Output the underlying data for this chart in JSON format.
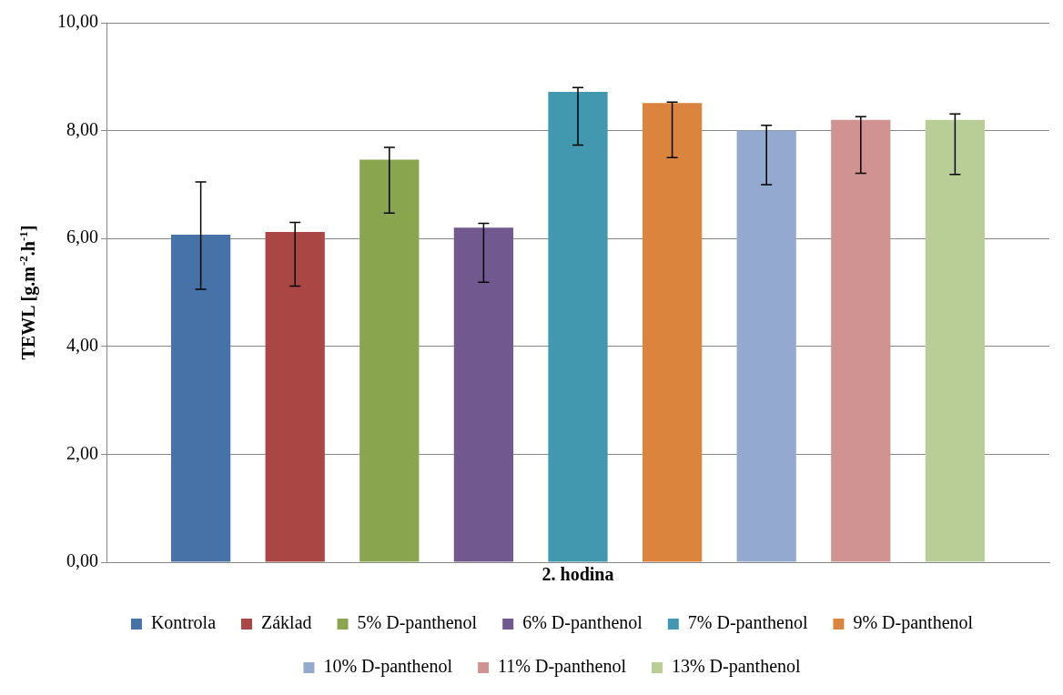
{
  "chart_data": {
    "type": "bar",
    "ylabel": "TEWL [g.m$^{-2}$.h$^{-1}$]",
    "categories": [
      "2. hodina"
    ],
    "series": [
      {
        "name": "Kontrola",
        "color": "#4672a8",
        "values": [
          6.07
        ],
        "errors": [
          [
            5.06,
            7.05
          ]
        ]
      },
      {
        "name": "Základ",
        "color": "#aa4644",
        "values": [
          6.12
        ],
        "errors": [
          [
            5.12,
            6.3
          ]
        ]
      },
      {
        "name": "5% D-panthenol",
        "color": "#89a54e",
        "values": [
          7.46
        ],
        "errors": [
          [
            6.47,
            7.69
          ]
        ]
      },
      {
        "name": "6% D-panthenol",
        "color": "#71588f",
        "values": [
          6.2
        ],
        "errors": [
          [
            5.19,
            6.28
          ]
        ]
      },
      {
        "name": "7% D-panthenol",
        "color": "#4198af",
        "values": [
          8.72
        ],
        "errors": [
          [
            7.73,
            8.8
          ]
        ]
      },
      {
        "name": "9% D-panthenol",
        "color": "#db843d",
        "values": [
          8.51
        ],
        "errors": [
          [
            7.5,
            8.53
          ]
        ]
      },
      {
        "name": "10% D-panthenol",
        "color": "#93a9cf",
        "values": [
          8.0
        ],
        "errors": [
          [
            7.0,
            8.1
          ]
        ]
      },
      {
        "name": "11% D-panthenol",
        "color": "#d19392",
        "values": [
          8.2
        ],
        "errors": [
          [
            7.21,
            8.26
          ]
        ]
      },
      {
        "name": "13% D-panthenol",
        "color": "#b9cd96",
        "values": [
          8.2
        ],
        "errors": [
          [
            7.19,
            8.31
          ]
        ]
      }
    ],
    "ylim": [
      0,
      10
    ],
    "yticks": [
      {
        "value": 0,
        "label": "0,00"
      },
      {
        "value": 2,
        "label": "2,00"
      },
      {
        "value": 4,
        "label": "4,00"
      },
      {
        "value": 6,
        "label": "6,00"
      },
      {
        "value": 8,
        "label": "8,00"
      },
      {
        "value": 10,
        "label": "10,00"
      }
    ],
    "grid": "y",
    "legend": "bottom"
  }
}
